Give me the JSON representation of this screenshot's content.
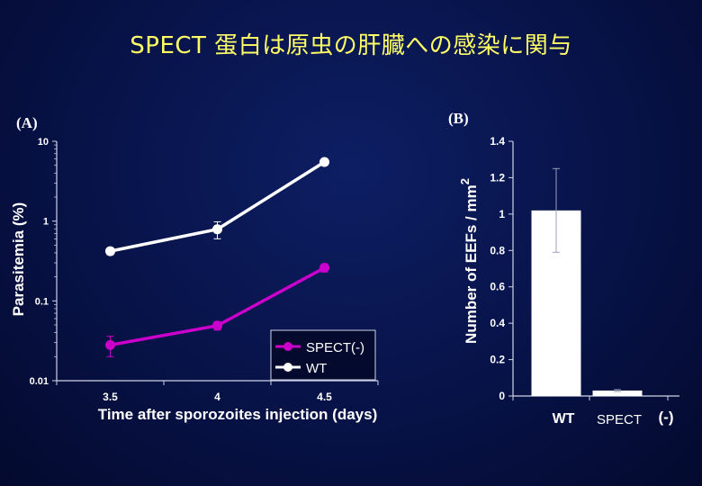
{
  "slide": {
    "title": "SPECT 蛋白は原虫の肝臓への感染に関与"
  },
  "chart_data": [
    {
      "panel_label": "(A)",
      "type": "line",
      "xlabel": "Time after sporozoites injection (days)",
      "ylabel": "Parasitemia (%)",
      "yscale": "log",
      "ylim": [
        0.01,
        10
      ],
      "xlim": [
        3.25,
        4.75
      ],
      "x_ticks": [
        3.5,
        4,
        4.5
      ],
      "x_tick_labels": [
        "3.5",
        "4",
        "4.5"
      ],
      "y_ticks": [
        0.01,
        0.1,
        1,
        10
      ],
      "y_tick_labels": [
        "0.01",
        "0.1",
        "1",
        "10"
      ],
      "legend_position": "bottom-right",
      "series": [
        {
          "name": "SPECT(-)",
          "color": "#cc00cc",
          "x": [
            3.5,
            4,
            4.5
          ],
          "values": [
            0.028,
            0.049,
            0.26
          ],
          "err_low": [
            0.02,
            0.043,
            0.23
          ],
          "err_high": [
            0.036,
            0.055,
            0.29
          ]
        },
        {
          "name": "WT",
          "color": "#ffffff",
          "x": [
            3.5,
            4,
            4.5
          ],
          "values": [
            0.42,
            0.79,
            5.5
          ],
          "err_low": [
            0.38,
            0.6,
            5.3
          ],
          "err_high": [
            0.46,
            0.98,
            5.7
          ]
        }
      ]
    },
    {
      "panel_label": "(B)",
      "type": "bar",
      "ylabel": "Number of EEFs / mm",
      "ylabel_superscript": "2",
      "ylim": [
        0,
        1.4
      ],
      "y_ticks": [
        0,
        0.2,
        0.4,
        0.6,
        0.8,
        1,
        1.2,
        1.4
      ],
      "y_tick_labels": [
        "0",
        "0.2",
        "0.4",
        "0.6",
        "0.8",
        "1",
        "1.2",
        "1.4"
      ],
      "categories": [
        "WT",
        "SPECT"
      ],
      "category_suffix": "(-)",
      "values": [
        1.02,
        0.03
      ],
      "err_low": [
        0.79,
        0.025
      ],
      "err_high": [
        1.25,
        0.035
      ],
      "bar_color": "#ffffff"
    }
  ]
}
